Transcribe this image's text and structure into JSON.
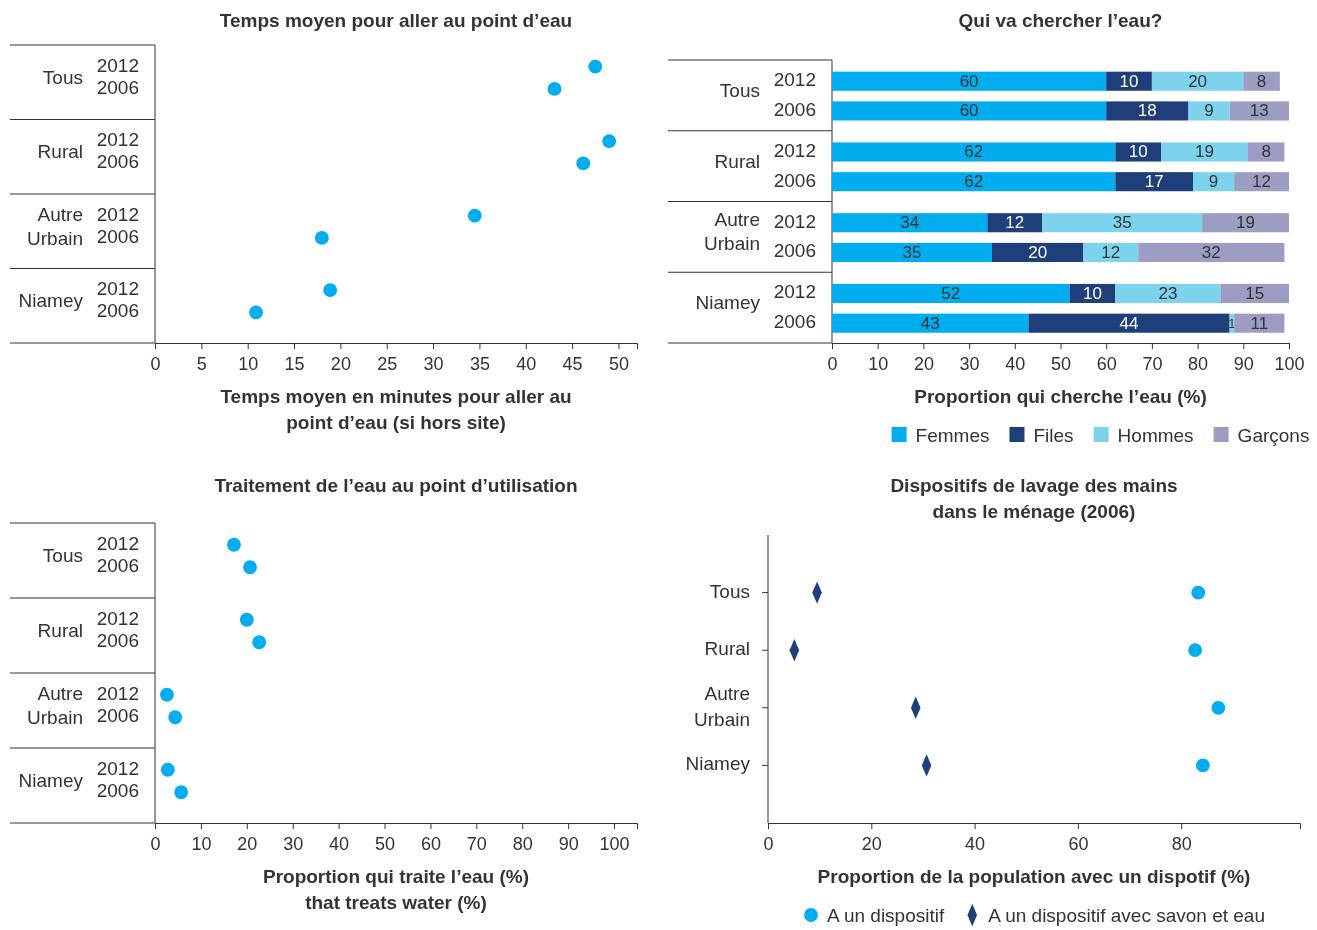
{
  "chart_data": [
    {
      "type": "scatter",
      "orientation": "horizontal",
      "title": "Temps moyen pour aller au point d’eau",
      "xlabel": "Temps moyen en minutes pour aller au\npoint d’eau (si hors site)",
      "categories": [
        "2012",
        "2006",
        "2012",
        "2006",
        "2012",
        "2006",
        "2012",
        "2006"
      ],
      "annotations": [
        "Tous",
        "Rural",
        "Autre Urbain",
        "Niamey"
      ],
      "values": [
        47.5,
        43.1,
        49,
        46.2,
        34.5,
        18,
        18.9,
        10.9
      ],
      "color": "#00aeef",
      "marker": "circle",
      "xlim": [
        0,
        52
      ],
      "xticks": [
        0,
        5,
        10,
        15,
        20,
        25,
        30,
        35,
        40,
        45,
        50
      ],
      "grid": false,
      "legend": false
    },
    {
      "type": "bar",
      "orientation": "horizontal",
      "stacked": true,
      "data_labels": true,
      "title": "Qui va chercher l’eau?",
      "xlabel": "Proportion qui cherche l’eau (%)",
      "categories": [
        "2012",
        "2006",
        "2012",
        "2006",
        "2012",
        "2006",
        "2012",
        "2006"
      ],
      "annotations": [
        "Tous",
        "Rural",
        "Autre Urbain",
        "Niamey"
      ],
      "series": [
        {
          "name": "Femmes",
          "color": "#00aeef",
          "values": [
            60,
            60,
            62,
            62,
            34,
            35,
            52,
            43
          ]
        },
        {
          "name": "Files",
          "color": "#1f3f7a",
          "values": [
            10,
            18,
            10,
            17,
            12,
            20,
            10,
            44
          ]
        },
        {
          "name": "Hommes",
          "color": "#7dd3ee",
          "values": [
            20,
            9,
            19,
            9,
            35,
            12,
            23,
            1
          ]
        },
        {
          "name": "Garçons",
          "color": "#9b9dc3",
          "values": [
            8,
            13,
            8,
            12,
            19,
            32,
            15,
            11
          ]
        }
      ],
      "xlim": [
        0,
        100
      ],
      "xticks": [
        0,
        10,
        20,
        30,
        40,
        50,
        60,
        70,
        80,
        90,
        100
      ],
      "grid": false,
      "legend": "bottom"
    },
    {
      "type": "scatter",
      "orientation": "horizontal",
      "title": "Traitement de l’eau au point d’utilisation",
      "xlabel": "Proportion qui traite l’eau (%)\nthat treats water (%)",
      "categories": [
        "2012",
        "2006",
        "2012",
        "2006",
        "2012",
        "2006",
        "2012",
        "2006"
      ],
      "annotations": [
        "Tous",
        "Rural",
        "Autre Urbain",
        "Niamey"
      ],
      "values": [
        17.2,
        20.7,
        20,
        22.7,
        2.6,
        4.4,
        2.8,
        5.7
      ],
      "color": "#00aeef",
      "marker": "circle",
      "xlim": [
        0,
        105
      ],
      "xticks": [
        0,
        10,
        20,
        30,
        40,
        50,
        60,
        70,
        80,
        90,
        100
      ],
      "grid": false,
      "legend": false
    },
    {
      "type": "scatter",
      "orientation": "horizontal",
      "title": "Dispositifs de lavage des mains\ndans le ménage (2006)",
      "xlabel": "Proportion de la population avec un dispotif (%)",
      "categories": [
        "Tous",
        "Rural",
        "Autre Urbain",
        "Niamey"
      ],
      "series": [
        {
          "name": "A un dispositif",
          "color": "#00aeef",
          "marker": "circle",
          "values": [
            83.3,
            82.7,
            87.2,
            84.2
          ]
        },
        {
          "name": "A un dispositif avec savon et eau",
          "color": "#1f3f7a",
          "marker": "diamond",
          "values": [
            9.5,
            5.1,
            28.6,
            30.7
          ]
        }
      ],
      "xlim": [
        0,
        103
      ],
      "xticks": [
        0,
        20,
        40,
        60,
        80
      ],
      "grid": false,
      "legend": "bottom"
    }
  ]
}
